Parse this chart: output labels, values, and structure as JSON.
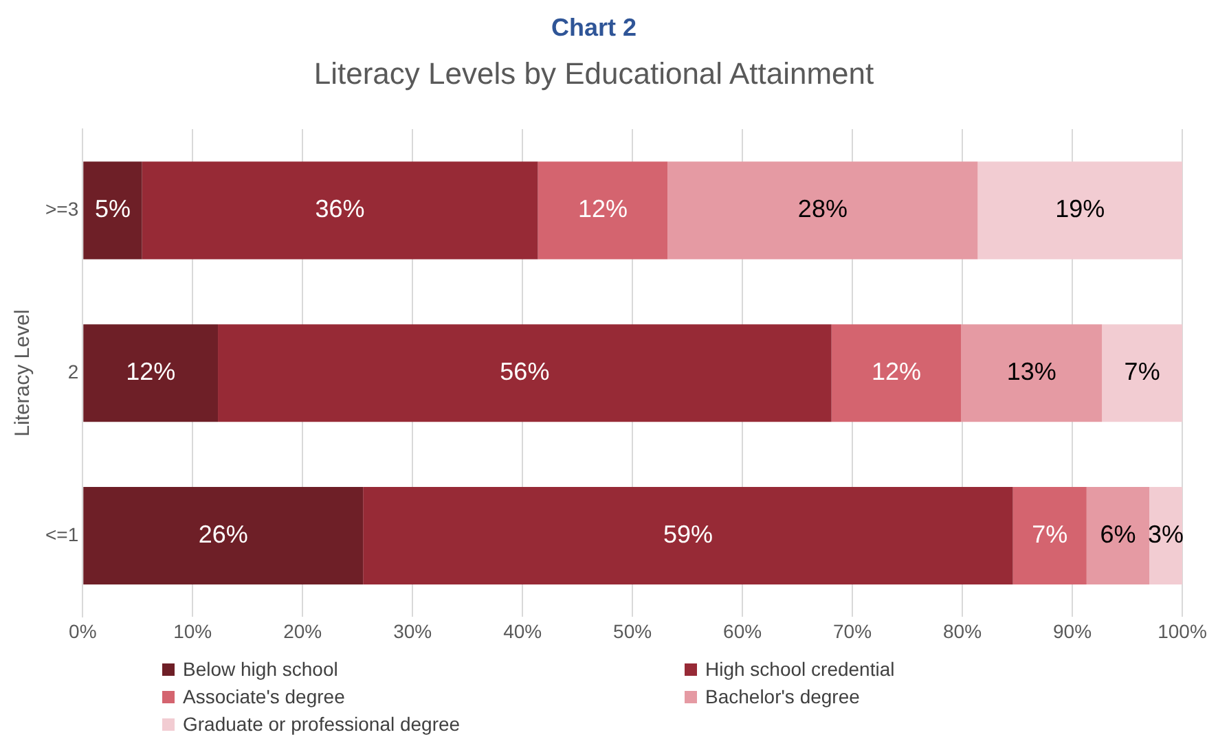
{
  "chart_data": {
    "type": "bar",
    "orientation": "horizontal",
    "stacked": true,
    "title": "Chart 2",
    "subtitle": "Literacy Levels by Educational Attainment",
    "ylabel": "Literacy Level",
    "categories": [
      ">=3",
      "2",
      "<=1"
    ],
    "series": [
      {
        "name": "Below high school",
        "color": "#6e1f27",
        "values": [
          5.4,
          12.3,
          25.5
        ],
        "value_labels": [
          "5%",
          "12%",
          "26%"
        ]
      },
      {
        "name": "High school credential",
        "color": "#972a36",
        "values": [
          36.0,
          55.8,
          59.1
        ],
        "value_labels": [
          "36%",
          "56%",
          "59%"
        ]
      },
      {
        "name": "Associate's degree",
        "color": "#d4646f",
        "values": [
          11.8,
          11.8,
          6.7
        ],
        "value_labels": [
          "12%",
          "12%",
          "7%"
        ]
      },
      {
        "name": "Bachelor's degree",
        "color": "#e59aa3",
        "values": [
          28.2,
          12.8,
          5.7
        ],
        "value_labels": [
          "28%",
          "13%",
          "6%"
        ]
      },
      {
        "name": "Graduate or professional degree",
        "color": "#f2ccd2",
        "values": [
          18.6,
          7.3,
          3.0
        ],
        "value_labels": [
          "19%",
          "7%",
          "3%"
        ]
      }
    ],
    "xlim": [
      0,
      100
    ],
    "xticks": [
      {
        "value": 0,
        "label": "0%"
      },
      {
        "value": 10,
        "label": "10%"
      },
      {
        "value": 20,
        "label": "20%"
      },
      {
        "value": 30,
        "label": "30%"
      },
      {
        "value": 40,
        "label": "40%"
      },
      {
        "value": 50,
        "label": "50%"
      },
      {
        "value": 60,
        "label": "60%"
      },
      {
        "value": 70,
        "label": "70%"
      },
      {
        "value": 80,
        "label": "80%"
      },
      {
        "value": 90,
        "label": "90%"
      },
      {
        "value": 100,
        "label": "100%"
      }
    ],
    "grid": "x",
    "legend": "bottom"
  }
}
